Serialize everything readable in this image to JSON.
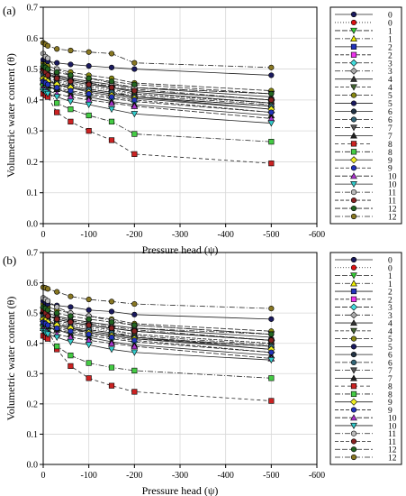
{
  "chart_data": [
    {
      "type": "line",
      "panel_label": "(a)",
      "xlabel": "Pressure head (ψ)",
      "ylabel": "Volumetric water content (θ)",
      "xlim": [
        0,
        -600
      ],
      "ylim": [
        0.0,
        0.7
      ],
      "xticks": [
        "0",
        "-100",
        "-200",
        "-300",
        "-400",
        "-500",
        "-600"
      ],
      "yticks": [
        "0.0",
        "0.1",
        "0.2",
        "0.3",
        "0.4",
        "0.5",
        "0.6",
        "0.7"
      ],
      "grid": true,
      "legend_position": "right",
      "x": [
        0,
        -5,
        -10,
        -30,
        -60,
        -100,
        -150,
        -200,
        -500
      ],
      "series": [
        {
          "name": "0",
          "marker": "circle",
          "color": "#1a1a5e",
          "dash": "",
          "values": [
            0.495,
            0.49,
            0.485,
            0.475,
            0.465,
            0.455,
            0.44,
            0.425,
            0.39
          ]
        },
        {
          "name": "0",
          "marker": "circle",
          "color": "#dd1111",
          "dash": "1,2",
          "values": [
            0.48,
            0.475,
            0.47,
            0.46,
            0.45,
            0.44,
            0.43,
            0.42,
            0.39
          ]
        },
        {
          "name": "1",
          "marker": "triangle-down",
          "color": "#33cc33",
          "dash": "6,2",
          "values": [
            0.46,
            0.455,
            0.45,
            0.445,
            0.44,
            0.43,
            0.42,
            0.41,
            0.38
          ]
        },
        {
          "name": "1",
          "marker": "triangle-up",
          "color": "#eeee00",
          "dash": "6,2,1,2",
          "values": [
            0.47,
            0.465,
            0.46,
            0.455,
            0.445,
            0.435,
            0.425,
            0.415,
            0.385
          ]
        },
        {
          "name": "2",
          "marker": "square",
          "color": "#2233bb",
          "dash": "",
          "values": [
            0.49,
            0.485,
            0.48,
            0.47,
            0.46,
            0.45,
            0.44,
            0.43,
            0.4
          ]
        },
        {
          "name": "2",
          "marker": "square",
          "color": "#ee33ee",
          "dash": "4,2",
          "values": [
            0.47,
            0.465,
            0.46,
            0.45,
            0.44,
            0.43,
            0.42,
            0.41,
            0.38
          ]
        },
        {
          "name": "3",
          "marker": "diamond",
          "color": "#44dddd",
          "dash": "6,2",
          "values": [
            0.45,
            0.445,
            0.44,
            0.435,
            0.425,
            0.415,
            0.405,
            0.395,
            0.36
          ]
        },
        {
          "name": "3",
          "marker": "diamond",
          "color": "#aaaaaa",
          "dash": "6,2,1,2",
          "values": [
            0.49,
            0.485,
            0.48,
            0.475,
            0.465,
            0.455,
            0.445,
            0.435,
            0.4
          ]
        },
        {
          "name": "4",
          "marker": "triangle-up",
          "color": "#333333",
          "dash": "",
          "values": [
            0.5,
            0.495,
            0.49,
            0.48,
            0.47,
            0.46,
            0.45,
            0.44,
            0.41
          ]
        },
        {
          "name": "4",
          "marker": "triangle-down",
          "color": "#446633",
          "dash": "4,2",
          "values": [
            0.48,
            0.475,
            0.47,
            0.465,
            0.455,
            0.445,
            0.435,
            0.42,
            0.39
          ]
        },
        {
          "name": "5",
          "marker": "circle",
          "color": "#888811",
          "dash": "6,2",
          "values": [
            0.52,
            0.515,
            0.51,
            0.5,
            0.49,
            0.48,
            0.47,
            0.455,
            0.43
          ]
        },
        {
          "name": "5",
          "marker": "circle",
          "color": "#1a1a5e",
          "dash": "",
          "values": [
            0.53,
            0.53,
            0.525,
            0.52,
            0.515,
            0.51,
            0.505,
            0.5,
            0.48
          ]
        },
        {
          "name": "6",
          "marker": "circle",
          "color": "#223344",
          "dash": "",
          "values": [
            0.47,
            0.465,
            0.46,
            0.45,
            0.44,
            0.43,
            0.42,
            0.41,
            0.37
          ]
        },
        {
          "name": "6",
          "marker": "circle",
          "color": "#336677",
          "dash": "6,2",
          "values": [
            0.48,
            0.47,
            0.465,
            0.455,
            0.445,
            0.435,
            0.425,
            0.41,
            0.38
          ]
        },
        {
          "name": "7",
          "marker": "triangle-down",
          "color": "#555555",
          "dash": "6,2,1,2",
          "values": [
            0.5,
            0.495,
            0.49,
            0.48,
            0.47,
            0.46,
            0.45,
            0.44,
            0.42
          ]
        },
        {
          "name": "7",
          "marker": "triangle-up",
          "color": "#222222",
          "dash": "",
          "values": [
            0.46,
            0.45,
            0.445,
            0.435,
            0.42,
            0.41,
            0.395,
            0.385,
            0.35
          ]
        },
        {
          "name": "8",
          "marker": "square",
          "color": "#cc2222",
          "dash": "4,3",
          "values": [
            0.42,
            0.415,
            0.41,
            0.36,
            0.33,
            0.3,
            0.27,
            0.225,
            0.195
          ]
        },
        {
          "name": "8",
          "marker": "square",
          "color": "#44cc44",
          "dash": "6,2,1,2",
          "values": [
            0.45,
            0.44,
            0.43,
            0.39,
            0.37,
            0.35,
            0.33,
            0.29,
            0.265
          ]
        },
        {
          "name": "9",
          "marker": "diamond",
          "color": "#eeee22",
          "dash": "",
          "values": [
            0.47,
            0.465,
            0.46,
            0.45,
            0.44,
            0.425,
            0.415,
            0.405,
            0.37
          ]
        },
        {
          "name": "9",
          "marker": "circle",
          "color": "#2233bb",
          "dash": "4,2",
          "values": [
            0.46,
            0.455,
            0.45,
            0.44,
            0.43,
            0.42,
            0.41,
            0.4,
            0.36
          ]
        },
        {
          "name": "10",
          "marker": "triangle-up",
          "color": "#aa33cc",
          "dash": "6,2",
          "values": [
            0.44,
            0.435,
            0.43,
            0.42,
            0.41,
            0.4,
            0.39,
            0.38,
            0.34
          ]
        },
        {
          "name": "10",
          "marker": "triangle-down",
          "color": "#33cccc",
          "dash": "",
          "values": [
            0.43,
            0.425,
            0.42,
            0.41,
            0.395,
            0.385,
            0.37,
            0.355,
            0.325
          ]
        },
        {
          "name": "11",
          "marker": "circle",
          "color": "#bbbbbb",
          "dash": "6,2,1,2",
          "values": [
            0.55,
            0.54,
            0.535,
            0.5,
            0.48,
            0.47,
            0.455,
            0.44,
            0.42
          ]
        },
        {
          "name": "11",
          "marker": "circle",
          "color": "#882222",
          "dash": "4,2",
          "values": [
            0.5,
            0.49,
            0.48,
            0.47,
            0.46,
            0.45,
            0.44,
            0.43,
            0.4
          ]
        },
        {
          "name": "12",
          "marker": "circle",
          "color": "#226622",
          "dash": "6,2",
          "values": [
            0.51,
            0.505,
            0.5,
            0.49,
            0.48,
            0.47,
            0.46,
            0.45,
            0.42
          ]
        },
        {
          "name": "12",
          "marker": "circle",
          "color": "#887722",
          "dash": "6,2,1,2",
          "values": [
            0.585,
            0.58,
            0.575,
            0.565,
            0.56,
            0.555,
            0.55,
            0.52,
            0.505
          ]
        }
      ]
    },
    {
      "type": "line",
      "panel_label": "(b)",
      "xlabel": "Pressure head (ψ)",
      "ylabel": "Volumetric water content (θ)",
      "xlim": [
        0,
        -600
      ],
      "ylim": [
        0.0,
        0.7
      ],
      "xticks": [
        "0",
        "-100",
        "-200",
        "-300",
        "-400",
        "-500",
        "-600"
      ],
      "yticks": [
        "0.0",
        "0.1",
        "0.2",
        "0.3",
        "0.4",
        "0.5",
        "0.6",
        "0.7"
      ],
      "grid": true,
      "legend_position": "right",
      "x": [
        0,
        -5,
        -10,
        -30,
        -60,
        -100,
        -150,
        -200,
        -500
      ],
      "series": [
        {
          "name": "0",
          "marker": "circle",
          "color": "#1a1a5e",
          "dash": "",
          "values": [
            0.5,
            0.495,
            0.49,
            0.48,
            0.47,
            0.46,
            0.45,
            0.44,
            0.41
          ]
        },
        {
          "name": "0",
          "marker": "circle",
          "color": "#dd1111",
          "dash": "1,2",
          "values": [
            0.49,
            0.485,
            0.48,
            0.47,
            0.46,
            0.45,
            0.44,
            0.43,
            0.4
          ]
        },
        {
          "name": "1",
          "marker": "triangle-down",
          "color": "#33cc33",
          "dash": "6,2",
          "values": [
            0.47,
            0.465,
            0.46,
            0.455,
            0.445,
            0.435,
            0.425,
            0.415,
            0.39
          ]
        },
        {
          "name": "1",
          "marker": "triangle-up",
          "color": "#eeee00",
          "dash": "6,2,1,2",
          "values": [
            0.48,
            0.475,
            0.47,
            0.465,
            0.455,
            0.445,
            0.435,
            0.425,
            0.395
          ]
        },
        {
          "name": "2",
          "marker": "square",
          "color": "#2233bb",
          "dash": "",
          "values": [
            0.5,
            0.495,
            0.49,
            0.48,
            0.47,
            0.46,
            0.45,
            0.44,
            0.41
          ]
        },
        {
          "name": "2",
          "marker": "square",
          "color": "#ee33ee",
          "dash": "4,2",
          "values": [
            0.48,
            0.475,
            0.47,
            0.46,
            0.45,
            0.44,
            0.43,
            0.42,
            0.39
          ]
        },
        {
          "name": "3",
          "marker": "diamond",
          "color": "#44dddd",
          "dash": "6,2",
          "values": [
            0.46,
            0.455,
            0.45,
            0.445,
            0.435,
            0.425,
            0.415,
            0.405,
            0.37
          ]
        },
        {
          "name": "3",
          "marker": "diamond",
          "color": "#aaaaaa",
          "dash": "6,2,1,2",
          "values": [
            0.5,
            0.495,
            0.49,
            0.485,
            0.475,
            0.465,
            0.455,
            0.445,
            0.41
          ]
        },
        {
          "name": "4",
          "marker": "triangle-up",
          "color": "#333333",
          "dash": "",
          "values": [
            0.51,
            0.505,
            0.5,
            0.49,
            0.48,
            0.47,
            0.46,
            0.45,
            0.42
          ]
        },
        {
          "name": "4",
          "marker": "triangle-down",
          "color": "#446633",
          "dash": "4,2",
          "values": [
            0.49,
            0.485,
            0.48,
            0.475,
            0.465,
            0.455,
            0.445,
            0.43,
            0.4
          ]
        },
        {
          "name": "5",
          "marker": "circle",
          "color": "#888811",
          "dash": "6,2",
          "values": [
            0.53,
            0.525,
            0.52,
            0.51,
            0.5,
            0.49,
            0.48,
            0.465,
            0.44
          ]
        },
        {
          "name": "5",
          "marker": "circle",
          "color": "#1a1a5e",
          "dash": "",
          "values": [
            0.54,
            0.535,
            0.53,
            0.525,
            0.52,
            0.51,
            0.505,
            0.495,
            0.48
          ]
        },
        {
          "name": "6",
          "marker": "circle",
          "color": "#223344",
          "dash": "",
          "values": [
            0.48,
            0.475,
            0.47,
            0.46,
            0.45,
            0.44,
            0.43,
            0.42,
            0.38
          ]
        },
        {
          "name": "6",
          "marker": "circle",
          "color": "#336677",
          "dash": "6,2",
          "values": [
            0.49,
            0.48,
            0.475,
            0.465,
            0.455,
            0.445,
            0.435,
            0.42,
            0.39
          ]
        },
        {
          "name": "7",
          "marker": "triangle-down",
          "color": "#555555",
          "dash": "6,2,1,2",
          "values": [
            0.51,
            0.505,
            0.5,
            0.49,
            0.48,
            0.47,
            0.46,
            0.45,
            0.43
          ]
        },
        {
          "name": "7",
          "marker": "triangle-up",
          "color": "#222222",
          "dash": "",
          "values": [
            0.47,
            0.46,
            0.455,
            0.445,
            0.43,
            0.42,
            0.405,
            0.395,
            0.36
          ]
        },
        {
          "name": "8",
          "marker": "square",
          "color": "#cc2222",
          "dash": "4,3",
          "values": [
            0.425,
            0.42,
            0.415,
            0.38,
            0.325,
            0.285,
            0.26,
            0.24,
            0.21
          ]
        },
        {
          "name": "8",
          "marker": "square",
          "color": "#44cc44",
          "dash": "6,2,1,2",
          "values": [
            0.45,
            0.445,
            0.44,
            0.39,
            0.36,
            0.335,
            0.32,
            0.31,
            0.285
          ]
        },
        {
          "name": "9",
          "marker": "diamond",
          "color": "#eeee22",
          "dash": "",
          "values": [
            0.48,
            0.475,
            0.47,
            0.46,
            0.45,
            0.435,
            0.425,
            0.415,
            0.38
          ]
        },
        {
          "name": "9",
          "marker": "circle",
          "color": "#2233bb",
          "dash": "4,2",
          "values": [
            0.47,
            0.465,
            0.46,
            0.45,
            0.44,
            0.43,
            0.42,
            0.41,
            0.37
          ]
        },
        {
          "name": "10",
          "marker": "triangle-up",
          "color": "#aa33cc",
          "dash": "6,2",
          "values": [
            0.45,
            0.445,
            0.44,
            0.43,
            0.42,
            0.41,
            0.4,
            0.39,
            0.35
          ]
        },
        {
          "name": "10",
          "marker": "triangle-down",
          "color": "#33cccc",
          "dash": "",
          "values": [
            0.44,
            0.435,
            0.43,
            0.42,
            0.405,
            0.395,
            0.38,
            0.37,
            0.345
          ]
        },
        {
          "name": "11",
          "marker": "circle",
          "color": "#bbbbbb",
          "dash": "6,2,1,2",
          "values": [
            0.55,
            0.545,
            0.54,
            0.52,
            0.5,
            0.49,
            0.475,
            0.46,
            0.43
          ]
        },
        {
          "name": "11",
          "marker": "circle",
          "color": "#882222",
          "dash": "4,2",
          "values": [
            0.51,
            0.5,
            0.49,
            0.48,
            0.47,
            0.46,
            0.45,
            0.44,
            0.41
          ]
        },
        {
          "name": "12",
          "marker": "circle",
          "color": "#226622",
          "dash": "6,2",
          "values": [
            0.52,
            0.515,
            0.51,
            0.5,
            0.49,
            0.48,
            0.47,
            0.46,
            0.43
          ]
        },
        {
          "name": "12",
          "marker": "circle",
          "color": "#887722",
          "dash": "6,2,1,2",
          "values": [
            0.585,
            0.583,
            0.58,
            0.57,
            0.555,
            0.545,
            0.538,
            0.53,
            0.515
          ]
        }
      ]
    }
  ]
}
